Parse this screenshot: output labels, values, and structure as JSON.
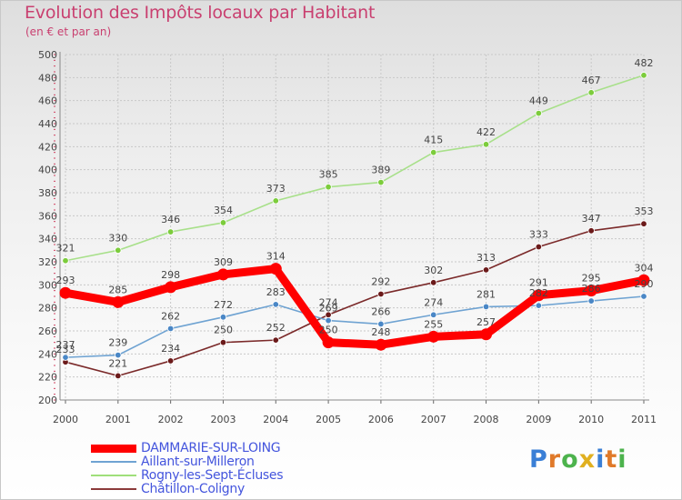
{
  "header": {
    "title": "Evolution des Impôts locaux par Habitant",
    "subtitle": "(en € et par an)"
  },
  "logo": {
    "text": "Proxiti"
  },
  "colors": {
    "dammarie": "#ff0000",
    "aillant": "#6fa3d2",
    "rogny": "#9fdf7a",
    "chatillon": "#8b3a3a"
  },
  "chart_data": {
    "type": "line",
    "title": "Evolution des Impôts locaux par Habitant",
    "subtitle": "(en € et par an)",
    "x": [
      2000,
      2001,
      2002,
      2003,
      2004,
      2005,
      2006,
      2007,
      2008,
      2009,
      2010,
      2011
    ],
    "ylim": [
      200,
      500
    ],
    "yticks": [
      200,
      220,
      240,
      260,
      280,
      300,
      320,
      340,
      360,
      380,
      400,
      420,
      440,
      460,
      480,
      500
    ],
    "grid": true,
    "legend_position": "bottom-left",
    "series": [
      {
        "name": "Châtillon-Coligny",
        "key": "chatillon",
        "values": [
          233,
          221,
          234,
          250,
          252,
          274,
          292,
          302,
          313,
          333,
          347,
          353
        ],
        "line_color": "#7b2a2a",
        "marker_color": "#6b1a1a"
      },
      {
        "name": "Rogny-les-Sept-Écluses",
        "key": "rogny",
        "values": [
          321,
          330,
          346,
          354,
          373,
          385,
          389,
          415,
          422,
          449,
          467,
          482
        ],
        "line_color": "#a8e08a",
        "marker_color": "#7ccc3c"
      },
      {
        "name": "Aillant-sur-Milleron",
        "key": "aillant",
        "values": [
          237,
          239,
          262,
          272,
          283,
          269,
          266,
          274,
          281,
          282,
          286,
          290
        ],
        "line_color": "#6fa3d2",
        "marker_color": "#4a87c6"
      },
      {
        "name": "DAMMARIE-SUR-LOING",
        "key": "dammarie",
        "values": [
          293,
          285,
          298,
          309,
          314,
          250,
          248,
          255,
          257,
          291,
          295,
          304
        ],
        "line_color": "#ff0000",
        "marker_color": "#ff0000"
      }
    ]
  }
}
